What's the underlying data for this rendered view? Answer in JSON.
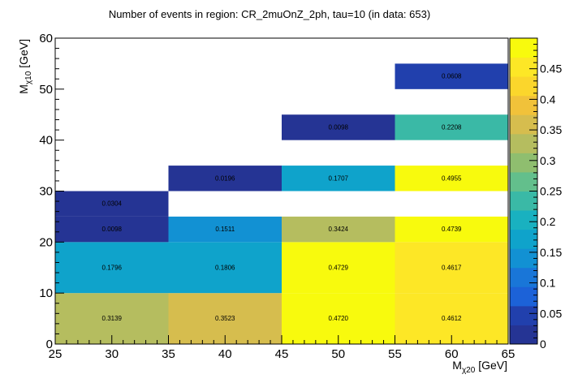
{
  "chart_data": {
    "type": "heatmap",
    "title": "Number of events in region: CR_2muOnZ_2ph, tau=10 (in data: 653)",
    "xlabel": {
      "main": "M",
      "sub": "χ20",
      "unit": " [GeV]"
    },
    "ylabel": {
      "main": "M",
      "sub": "χ10",
      "unit": " [GeV]"
    },
    "xlim": [
      25,
      65
    ],
    "ylim": [
      0,
      60
    ],
    "zlim": [
      0,
      0.5
    ],
    "x_ticks": [
      "25",
      "30",
      "35",
      "40",
      "45",
      "50",
      "55",
      "60",
      "65"
    ],
    "y_ticks": [
      "0",
      "10",
      "20",
      "30",
      "40",
      "50",
      "60"
    ],
    "z_ticks": [
      "0",
      "0.05",
      "0.1",
      "0.15",
      "0.2",
      "0.25",
      "0.3",
      "0.35",
      "0.4",
      "0.45"
    ],
    "cells": [
      {
        "x0": 25,
        "x1": 35,
        "y0": 0,
        "y1": 10,
        "value": 0.3139,
        "label": "0.3139"
      },
      {
        "x0": 35,
        "x1": 45,
        "y0": 0,
        "y1": 10,
        "value": 0.3523,
        "label": "0.3523"
      },
      {
        "x0": 45,
        "x1": 55,
        "y0": 0,
        "y1": 10,
        "value": 0.472,
        "label": "0.4720"
      },
      {
        "x0": 55,
        "x1": 65,
        "y0": 0,
        "y1": 10,
        "value": 0.4612,
        "label": "0.4612"
      },
      {
        "x0": 25,
        "x1": 35,
        "y0": 10,
        "y1": 20,
        "value": 0.1796,
        "label": "0.1796"
      },
      {
        "x0": 35,
        "x1": 45,
        "y0": 10,
        "y1": 20,
        "value": 0.1806,
        "label": "0.1806"
      },
      {
        "x0": 45,
        "x1": 55,
        "y0": 10,
        "y1": 20,
        "value": 0.4729,
        "label": "0.4729"
      },
      {
        "x0": 55,
        "x1": 65,
        "y0": 10,
        "y1": 20,
        "value": 0.4617,
        "label": "0.4617"
      },
      {
        "x0": 25,
        "x1": 35,
        "y0": 20,
        "y1": 25,
        "value": 0.0098,
        "label": "0.0098"
      },
      {
        "x0": 35,
        "x1": 45,
        "y0": 20,
        "y1": 25,
        "value": 0.1511,
        "label": "0.1511"
      },
      {
        "x0": 45,
        "x1": 55,
        "y0": 20,
        "y1": 25,
        "value": 0.3424,
        "label": "0.3424"
      },
      {
        "x0": 55,
        "x1": 65,
        "y0": 20,
        "y1": 25,
        "value": 0.4739,
        "label": "0.4739"
      },
      {
        "x0": 25,
        "x1": 35,
        "y0": 25,
        "y1": 30,
        "value": 0.0304,
        "label": "0.0304"
      },
      {
        "x0": 35,
        "x1": 45,
        "y0": 30,
        "y1": 35,
        "value": 0.0196,
        "label": "0.0196"
      },
      {
        "x0": 45,
        "x1": 55,
        "y0": 30,
        "y1": 35,
        "value": 0.1707,
        "label": "0.1707"
      },
      {
        "x0": 55,
        "x1": 65,
        "y0": 30,
        "y1": 35,
        "value": 0.4955,
        "label": "0.4955"
      },
      {
        "x0": 45,
        "x1": 55,
        "y0": 40,
        "y1": 45,
        "value": 0.0098,
        "label": "0.0098"
      },
      {
        "x0": 55,
        "x1": 65,
        "y0": 40,
        "y1": 45,
        "value": 0.2208,
        "label": "0.2208"
      },
      {
        "x0": 55,
        "x1": 65,
        "y0": 50,
        "y1": 55,
        "value": 0.0608,
        "label": "0.0608"
      }
    ],
    "colorscale": [
      "#253494",
      "#2140ad",
      "#1c62d8",
      "#1976d8",
      "#1291d3",
      "#0fa3cb",
      "#19b1c0",
      "#3ab9a6",
      "#63bf8c",
      "#8fbe6f",
      "#b5bd5f",
      "#d6bd4e",
      "#f1c23a",
      "#fbd62c",
      "#fde726",
      "#f8fa0d"
    ],
    "grid": false,
    "legend": "colorbar-right"
  }
}
